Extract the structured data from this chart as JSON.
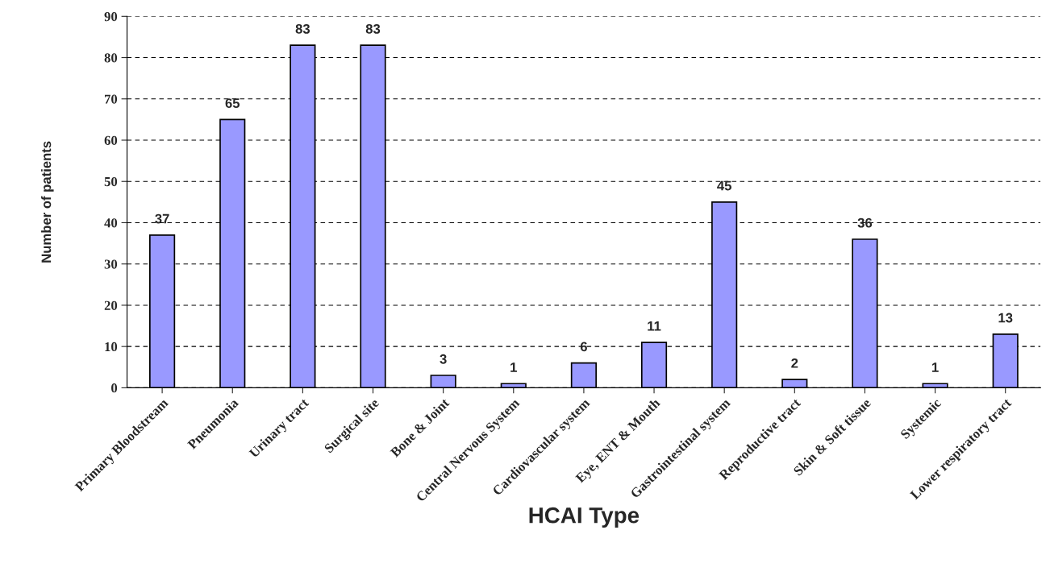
{
  "chart_data": {
    "type": "bar",
    "xlabel": "HCAI Type",
    "ylabel": "Number of patients",
    "categories": [
      "Primary Bloodstream",
      "Pneumonia",
      "Urinary tract",
      "Surgical site",
      "Bone & Joint",
      "Central Nervous System",
      "Cardiovascular system",
      "Eye, ENT & Mouth",
      "Gastrointestinal system",
      "Reproductive tract",
      "Skin & Soft tissue",
      "Systemic",
      "Lower respiratory tract"
    ],
    "values": [
      37,
      65,
      83,
      83,
      3,
      1,
      6,
      11,
      45,
      2,
      36,
      1,
      13
    ],
    "color": "#9999ff",
    "ylim": [
      0,
      90
    ],
    "yticks": [
      0,
      10,
      20,
      30,
      40,
      50,
      60,
      70,
      80,
      90
    ],
    "grid": "y",
    "data_labels": true,
    "legend": false
  }
}
